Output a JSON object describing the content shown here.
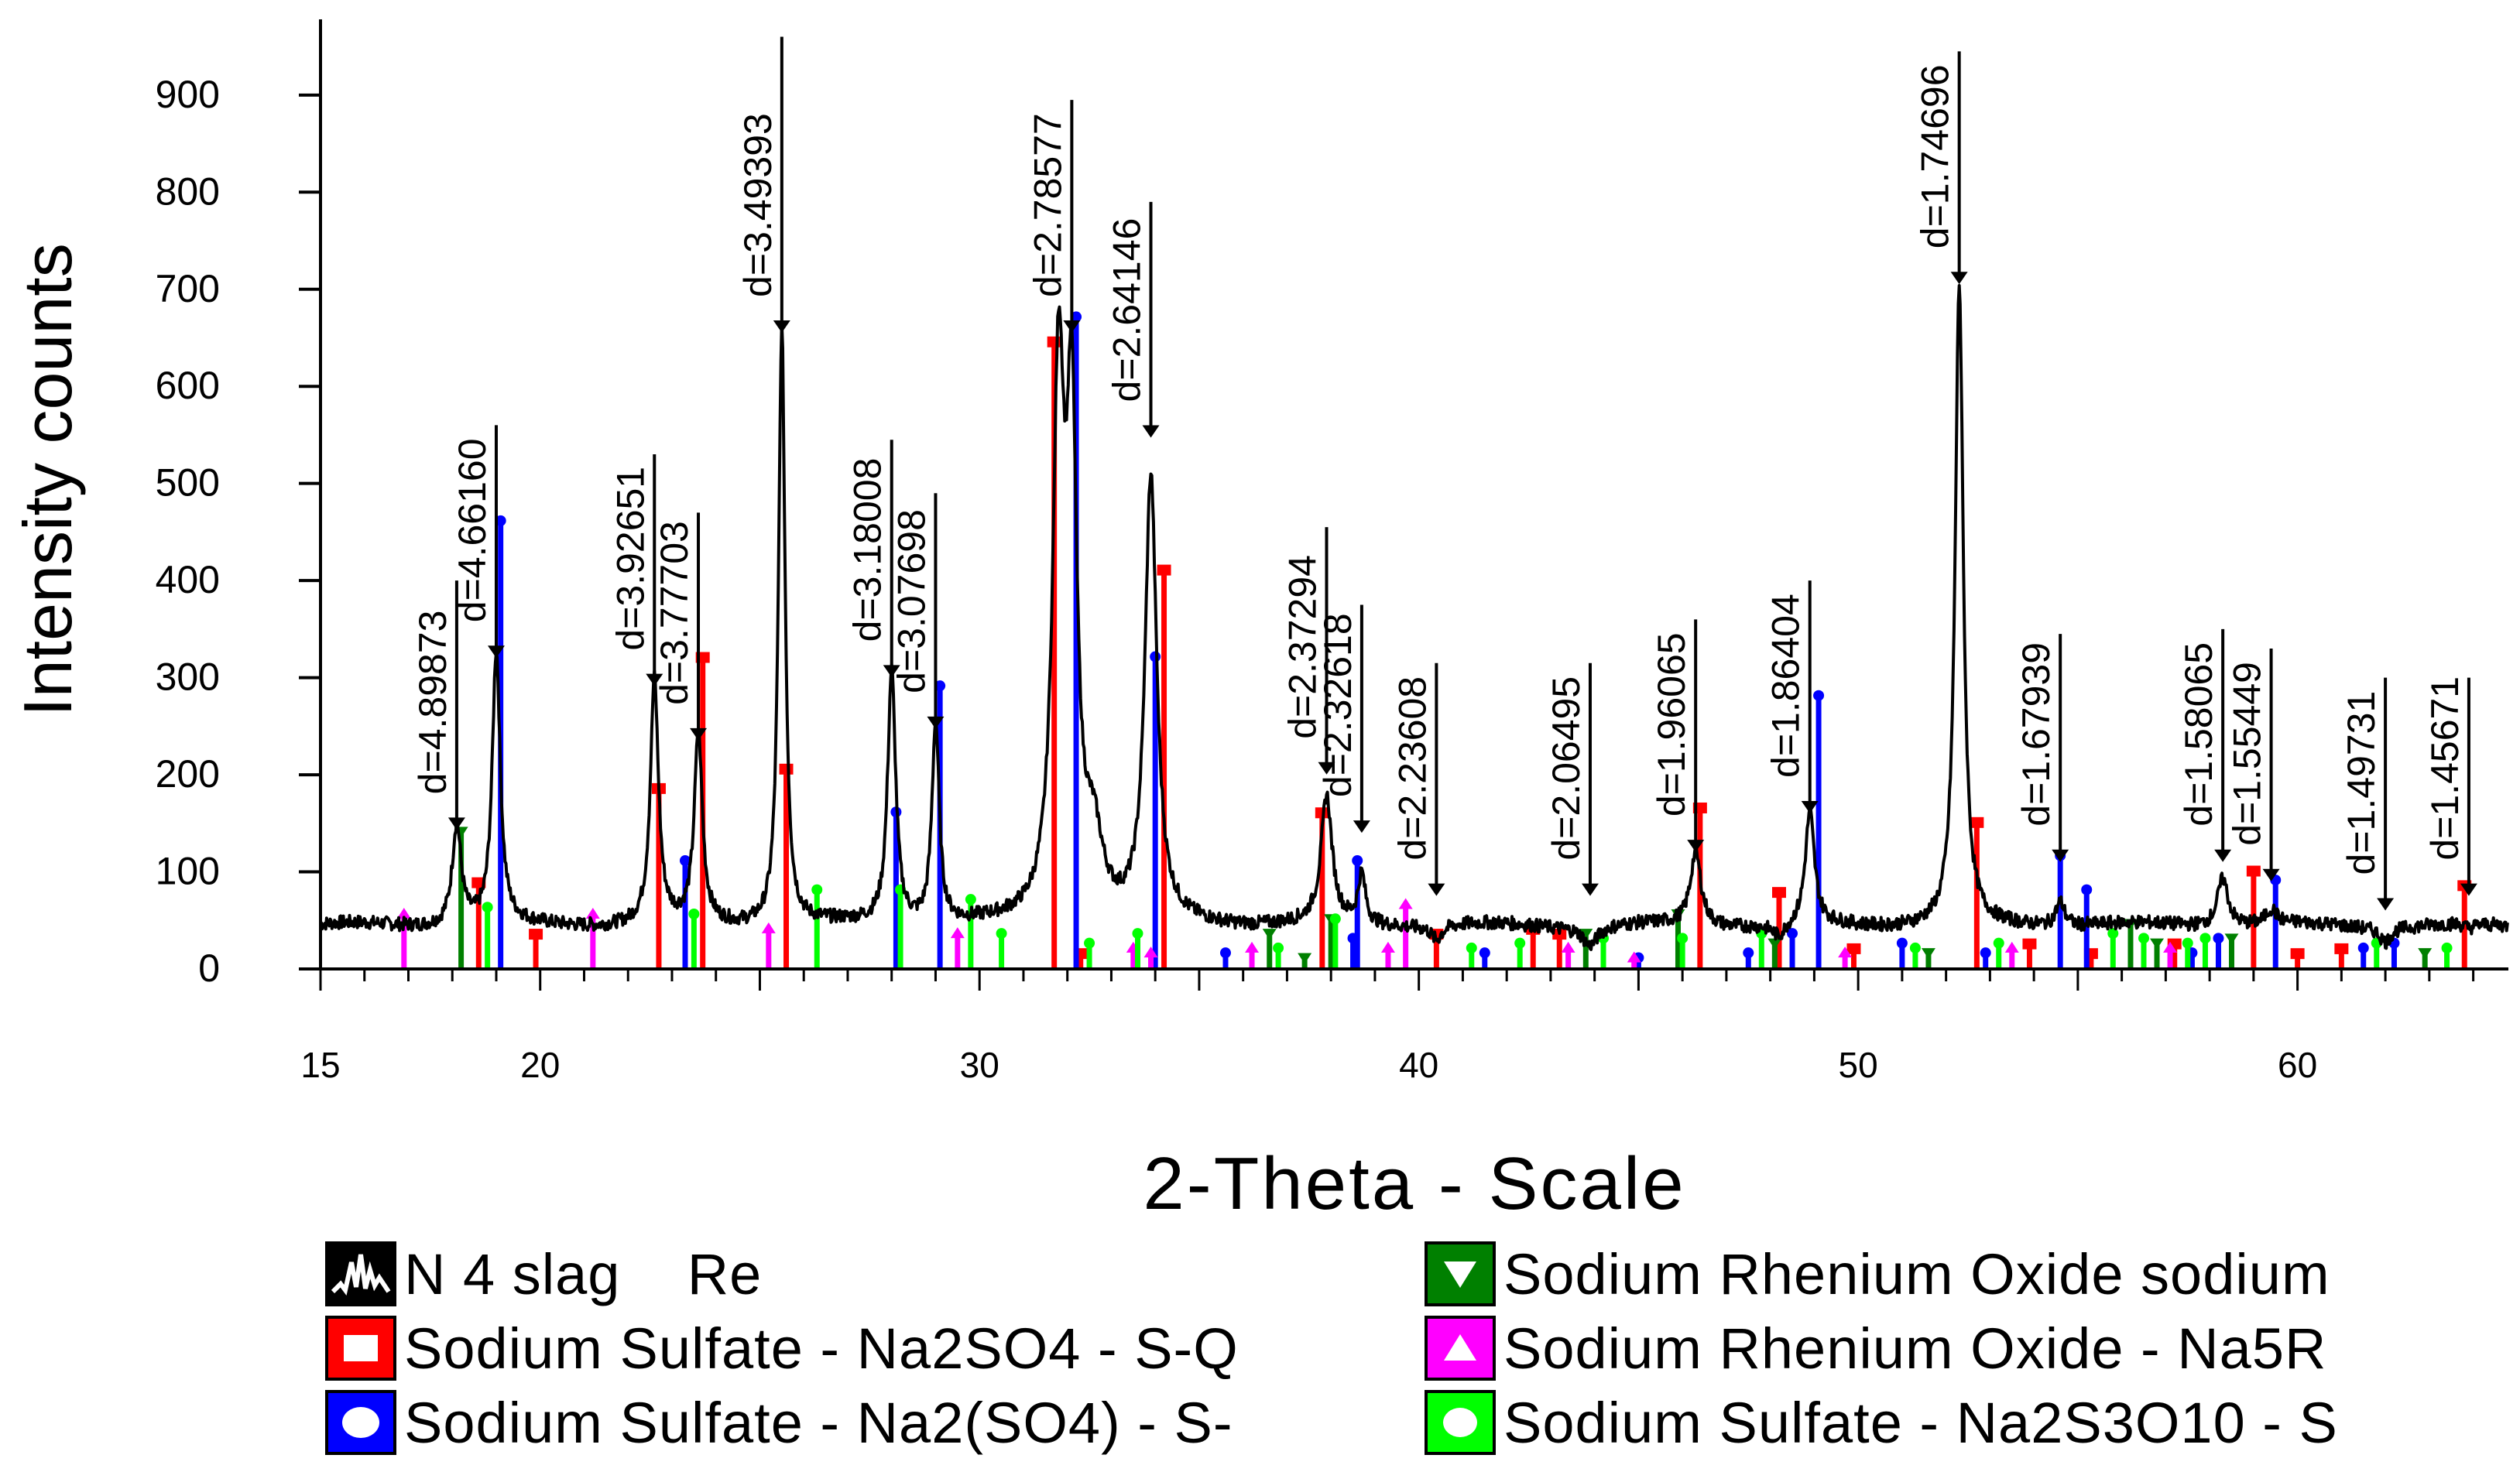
{
  "chart_data": {
    "type": "line",
    "xlabel": "2-Theta - Scale",
    "ylabel": "Intensity counts",
    "xlim": [
      15,
      64.8
    ],
    "ylim": [
      0,
      970
    ],
    "x_ticks": [
      15,
      20,
      30,
      40,
      50,
      60
    ],
    "y_ticks": [
      0,
      100,
      200,
      300,
      400,
      500,
      600,
      700,
      800,
      900
    ],
    "series": [
      {
        "name": "N 4 slag    Re",
        "color": "#000000",
        "baseline": 45,
        "peaks": [
          {
            "x": 18.1,
            "y": 148,
            "w": 0.25
          },
          {
            "x": 19.0,
            "y": 325,
            "w": 0.22
          },
          {
            "x": 22.6,
            "y": 296,
            "w": 0.22
          },
          {
            "x": 23.6,
            "y": 240,
            "w": 0.22
          },
          {
            "x": 25.5,
            "y": 660,
            "w": 0.18
          },
          {
            "x": 28.0,
            "y": 305,
            "w": 0.22
          },
          {
            "x": 29.0,
            "y": 252,
            "w": 0.2
          },
          {
            "x": 31.8,
            "y": 590,
            "w": 0.32
          },
          {
            "x": 32.1,
            "y": 520,
            "w": 0.28
          },
          {
            "x": 32.6,
            "y": 120,
            "w": 0.5
          },
          {
            "x": 33.9,
            "y": 500,
            "w": 0.32
          },
          {
            "x": 37.9,
            "y": 175,
            "w": 0.3
          },
          {
            "x": 38.7,
            "y": 95,
            "w": 0.2
          },
          {
            "x": 40.4,
            "y": 30,
            "w": 0.3
          },
          {
            "x": 43.9,
            "y": 25,
            "w": 0.4
          },
          {
            "x": 46.3,
            "y": 120,
            "w": 0.3
          },
          {
            "x": 48.9,
            "y": 160,
            "w": 0.25
          },
          {
            "x": 48.2,
            "y": 30,
            "w": 0.4
          },
          {
            "x": 52.3,
            "y": 705,
            "w": 0.22
          },
          {
            "x": 54.6,
            "y": 70,
            "w": 0.25
          },
          {
            "x": 58.3,
            "y": 95,
            "w": 0.3
          },
          {
            "x": 59.4,
            "y": 60,
            "w": 0.3
          },
          {
            "x": 62.0,
            "y": 30,
            "w": 0.3
          },
          {
            "x": 63.9,
            "y": 40,
            "w": 0.3
          }
        ]
      },
      {
        "name": "Sodium Sulfate - Na2SO4 - S-Q",
        "color": "#ff0000",
        "marker": "square",
        "sticks": [
          [
            18.6,
            88
          ],
          [
            19.9,
            35
          ],
          [
            22.7,
            185
          ],
          [
            23.7,
            320
          ],
          [
            25.6,
            205
          ],
          [
            31.7,
            645
          ],
          [
            32.3,
            15
          ],
          [
            34.2,
            410
          ],
          [
            37.8,
            160
          ],
          [
            40.4,
            35
          ],
          [
            42.6,
            40
          ],
          [
            43.2,
            35
          ],
          [
            46.4,
            165
          ],
          [
            48.2,
            78
          ],
          [
            49.9,
            20
          ],
          [
            52.7,
            150
          ],
          [
            53.9,
            25
          ],
          [
            55.3,
            15
          ],
          [
            57.2,
            25
          ],
          [
            59.0,
            100
          ],
          [
            60.0,
            15
          ],
          [
            61.0,
            20
          ],
          [
            63.8,
            85
          ]
        ]
      },
      {
        "name": "Sodium Sulfate - Na2(SO4) - S-",
        "color": "#0000ff",
        "marker": "circle",
        "sticks": [
          [
            19.1,
            460
          ],
          [
            23.3,
            110
          ],
          [
            28.1,
            160
          ],
          [
            29.1,
            290
          ],
          [
            32.2,
            670
          ],
          [
            34.0,
            320
          ],
          [
            35.6,
            15
          ],
          [
            38.5,
            30
          ],
          [
            38.6,
            110
          ],
          [
            41.5,
            15
          ],
          [
            45.0,
            10
          ],
          [
            47.5,
            15
          ],
          [
            48.5,
            35
          ],
          [
            49.1,
            280
          ],
          [
            51.0,
            25
          ],
          [
            52.9,
            15
          ],
          [
            54.6,
            115
          ],
          [
            55.2,
            80
          ],
          [
            57.6,
            15
          ],
          [
            58.2,
            30
          ],
          [
            59.5,
            90
          ],
          [
            61.5,
            20
          ],
          [
            62.2,
            25
          ]
        ]
      },
      {
        "name": "Sodium Rhenium Oxide sodium",
        "color": "#008000",
        "marker": "triangle-down",
        "sticks": [
          [
            18.2,
            140
          ],
          [
            36.6,
            35
          ],
          [
            37.4,
            10
          ],
          [
            38.0,
            50
          ],
          [
            43.8,
            35
          ],
          [
            45.9,
            55
          ],
          [
            48.1,
            25
          ],
          [
            51.6,
            15
          ],
          [
            56.2,
            45
          ],
          [
            56.8,
            25
          ],
          [
            58.5,
            30
          ],
          [
            62.9,
            15
          ]
        ]
      },
      {
        "name": "Sodium Rhenium Oxide - Na5R",
        "color": "#ff00ff",
        "marker": "triangle-up",
        "sticks": [
          [
            16.9,
            55
          ],
          [
            21.2,
            55
          ],
          [
            25.2,
            40
          ],
          [
            29.5,
            35
          ],
          [
            33.5,
            20
          ],
          [
            33.9,
            15
          ],
          [
            36.2,
            20
          ],
          [
            39.3,
            20
          ],
          [
            39.7,
            65
          ],
          [
            43.4,
            20
          ],
          [
            44.9,
            10
          ],
          [
            49.7,
            15
          ],
          [
            53.5,
            20
          ],
          [
            57.1,
            20
          ]
        ]
      },
      {
        "name": "Sodium Sulfate - Na2S3O10 - S",
        "color": "#00ff00",
        "marker": "circle",
        "sticks": [
          [
            18.8,
            62
          ],
          [
            23.5,
            55
          ],
          [
            26.3,
            80
          ],
          [
            28.2,
            80
          ],
          [
            29.8,
            70
          ],
          [
            30.5,
            35
          ],
          [
            32.5,
            25
          ],
          [
            33.6,
            35
          ],
          [
            36.8,
            20
          ],
          [
            38.1,
            50
          ],
          [
            41.2,
            20
          ],
          [
            42.3,
            25
          ],
          [
            44.2,
            30
          ],
          [
            46.0,
            30
          ],
          [
            47.8,
            35
          ],
          [
            51.3,
            20
          ],
          [
            53.2,
            25
          ],
          [
            55.8,
            35
          ],
          [
            56.5,
            30
          ],
          [
            57.5,
            25
          ],
          [
            57.9,
            30
          ],
          [
            61.8,
            25
          ],
          [
            63.4,
            20
          ]
        ]
      }
    ],
    "annotations": [
      {
        "x": 18.1,
        "y": 148,
        "line_top": 400,
        "label": "d=4.89873"
      },
      {
        "x": 19.0,
        "y": 325,
        "line_top": 560,
        "label": "d=4.66160"
      },
      {
        "x": 22.6,
        "y": 296,
        "line_top": 530,
        "label": "d=3.92651"
      },
      {
        "x": 23.6,
        "y": 240,
        "line_top": 470,
        "label": "d=3.77703"
      },
      {
        "x": 25.5,
        "y": 660,
        "line_top": 960,
        "label": "d=3.49393"
      },
      {
        "x": 28.0,
        "y": 305,
        "line_top": 545,
        "label": "d=3.18008"
      },
      {
        "x": 29.0,
        "y": 252,
        "line_top": 490,
        "label": "d=3.07698"
      },
      {
        "x": 32.1,
        "y": 660,
        "line_top": 895,
        "label": "d=2.78577"
      },
      {
        "x": 33.9,
        "y": 552,
        "line_top": 790,
        "label": "d=2.64146"
      },
      {
        "x": 37.9,
        "y": 205,
        "line_top": 455,
        "label": "d=2.37294"
      },
      {
        "x": 38.7,
        "y": 145,
        "line_top": 375,
        "label": "d=2.32618"
      },
      {
        "x": 40.4,
        "y": 80,
        "line_top": 315,
        "label": "d=2.23608"
      },
      {
        "x": 43.9,
        "y": 80,
        "line_top": 315,
        "label": "d=2.06495"
      },
      {
        "x": 46.3,
        "y": 125,
        "line_top": 360,
        "label": "d=1.96065"
      },
      {
        "x": 48.9,
        "y": 165,
        "line_top": 400,
        "label": "d=1.86404"
      },
      {
        "x": 52.3,
        "y": 710,
        "line_top": 945,
        "label": "d=1.74696"
      },
      {
        "x": 54.6,
        "y": 115,
        "line_top": 345,
        "label": "d=1.67939"
      },
      {
        "x": 58.3,
        "y": 115,
        "line_top": 350,
        "label": "d=1.58065"
      },
      {
        "x": 59.4,
        "y": 95,
        "line_top": 330,
        "label": "d=1.55449"
      },
      {
        "x": 62.0,
        "y": 65,
        "line_top": 300,
        "label": "d=1.49731"
      },
      {
        "x": 63.9,
        "y": 80,
        "line_top": 300,
        "label": "d=1.45671"
      }
    ]
  }
}
